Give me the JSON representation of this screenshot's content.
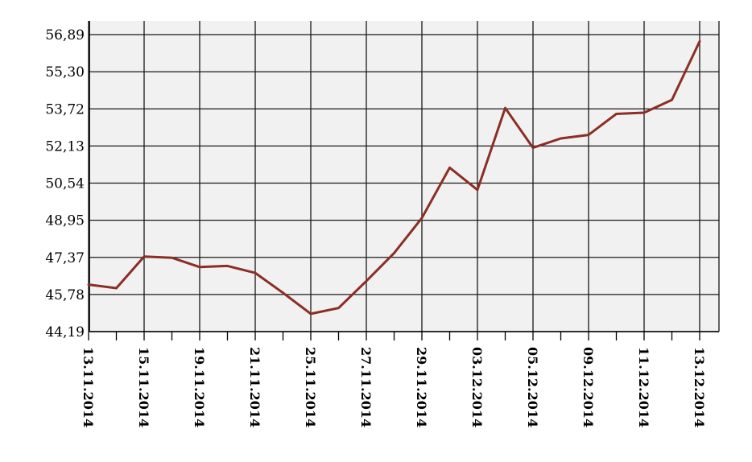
{
  "chart_data": {
    "type": "line",
    "title": "",
    "xlabel": "",
    "ylabel": "",
    "y_ticks": [
      "56,89",
      "55,30",
      "53,72",
      "52,13",
      "50,54",
      "48,95",
      "47,37",
      "45,78",
      "44,19"
    ],
    "ylim": [
      44.19,
      56.89
    ],
    "x_tick_labels": [
      "13.11.2014",
      "15.11.2014",
      "19.11.2014",
      "21.11.2014",
      "25.11.2014",
      "27.11.2014",
      "29.11.2014",
      "03.12.2014",
      "05.12.2014",
      "09.12.2014",
      "11.12.2014",
      "13.12.2014"
    ],
    "grid": true,
    "series": [
      {
        "color": "#8b2e24",
        "values": [
          46.2,
          46.05,
          47.4,
          47.35,
          46.95,
          47.0,
          46.7,
          45.85,
          44.95,
          45.2,
          46.35,
          47.55,
          49.05,
          51.2,
          50.25,
          53.75,
          52.05,
          52.45,
          52.6,
          53.5,
          53.55,
          54.1,
          56.6
        ]
      }
    ],
    "colors": {
      "line": "#8b2e24",
      "plot_bg": "#f1f1f1",
      "grid": "#1a1a1a"
    }
  }
}
